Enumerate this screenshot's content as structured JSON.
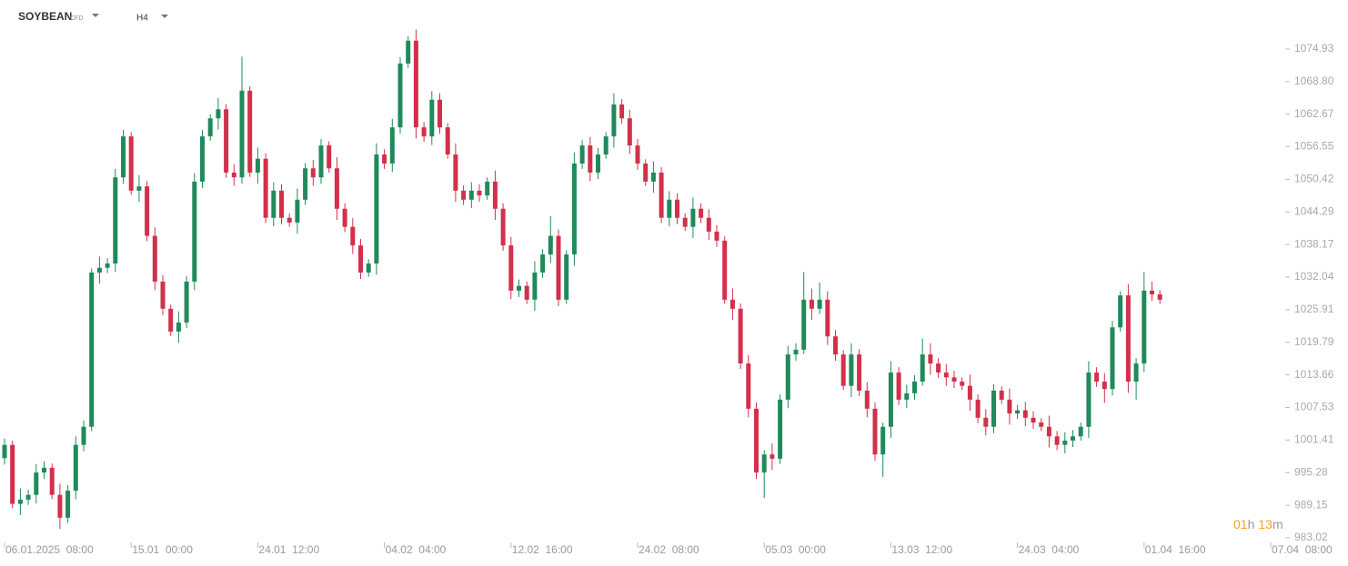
{
  "chart_data": {
    "type": "candlestick",
    "symbol": "SOYBEAN",
    "instrument": "CFD",
    "timeframe": "H4",
    "countdown": [
      "01",
      "h",
      "13",
      "m"
    ],
    "up_color": "#1f8a5b",
    "down_color": "#d2304b",
    "ylim": [
      981.65,
      1084.15
    ],
    "yticks": [
      1074.93,
      {
        "value": 1068.8,
        "label": "1068.80"
      },
      1062.67,
      1056.55,
      1050.42,
      1044.29,
      1038.17,
      1032.04,
      1025.91,
      1019.79,
      1013.66,
      1007.53,
      1001.41,
      995.28,
      989.15,
      983.02
    ],
    "xticks": [
      {
        "value": 0,
        "label": "06.01.2025  08:00"
      },
      {
        "value": 16,
        "label": "15.01  00:00"
      },
      {
        "value": 32,
        "label": "24.01  12:00"
      },
      {
        "value": 48,
        "label": "04.02  04:00"
      },
      {
        "value": 64,
        "label": "12.02  16:00"
      },
      {
        "value": 80,
        "label": "24.02  08:00"
      },
      {
        "value": 96,
        "label": "05.03  00:00"
      },
      {
        "value": 112,
        "label": "13.03  12:00"
      },
      {
        "value": 128,
        "label": "24.03  04:00"
      },
      {
        "value": 144,
        "label": "01.04  16:00"
      },
      {
        "value": 160,
        "label": "07.04  08:00"
      }
    ],
    "series": [
      {
        "name": "SOYBEAN",
        "ohlc": [
          [
            998.0,
            1001.7,
            996.8,
            1000.5
          ],
          [
            1000.5,
            1001.3,
            988.6,
            989.4
          ],
          [
            989.4,
            992.3,
            987.3,
            990.2
          ],
          [
            990.2,
            992.1,
            989.2,
            991.1
          ],
          [
            991.1,
            996.9,
            989.5,
            995.3
          ],
          [
            995.3,
            997.4,
            994.1,
            996.2
          ],
          [
            996.2,
            997.0,
            990.3,
            991.1
          ],
          [
            991.1,
            993.2,
            984.7,
            986.8
          ],
          [
            986.8,
            992.9,
            985.8,
            991.9
          ],
          [
            991.9,
            1002.1,
            990.3,
            1000.5
          ],
          [
            1000.5,
            1005.1,
            999.3,
            1003.9
          ],
          [
            1003.9,
            1033.7,
            1003.1,
            1032.9
          ],
          [
            1032.9,
            1035.9,
            1030.8,
            1033.8
          ],
          [
            1033.8,
            1035.6,
            1032.8,
            1034.6
          ],
          [
            1034.6,
            1052.4,
            1033.0,
            1050.8
          ],
          [
            1050.8,
            1059.7,
            1049.6,
            1058.5
          ],
          [
            1058.5,
            1059.3,
            1047.5,
            1048.3
          ],
          [
            1048.3,
            1051.2,
            1046.2,
            1049.1
          ],
          [
            1049.1,
            1050.1,
            1038.8,
            1039.8
          ],
          [
            1039.8,
            1041.4,
            1029.6,
            1031.2
          ],
          [
            1031.2,
            1032.4,
            1024.9,
            1026.1
          ],
          [
            1026.1,
            1026.9,
            1021.0,
            1021.8
          ],
          [
            1021.8,
            1025.6,
            1019.7,
            1023.5
          ],
          [
            1023.5,
            1032.2,
            1022.5,
            1031.2
          ],
          [
            1031.2,
            1051.6,
            1029.6,
            1050.0
          ],
          [
            1050.0,
            1059.7,
            1048.8,
            1058.5
          ],
          [
            1058.5,
            1062.7,
            1057.7,
            1061.9
          ],
          [
            1061.9,
            1065.7,
            1059.8,
            1063.6
          ],
          [
            1063.6,
            1064.6,
            1050.7,
            1051.7
          ],
          [
            1051.7,
            1053.3,
            1049.2,
            1050.8
          ],
          [
            1050.8,
            1073.5,
            1049.6,
            1067.1
          ],
          [
            1067.1,
            1067.9,
            1050.9,
            1051.7
          ],
          [
            1051.7,
            1056.4,
            1049.6,
            1054.3
          ],
          [
            1054.3,
            1055.3,
            1042.2,
            1043.2
          ],
          [
            1043.2,
            1049.9,
            1041.6,
            1048.3
          ],
          [
            1048.3,
            1049.5,
            1042.0,
            1043.2
          ],
          [
            1043.2,
            1044.0,
            1041.5,
            1042.3
          ],
          [
            1042.3,
            1048.7,
            1040.2,
            1046.6
          ],
          [
            1046.6,
            1053.5,
            1045.6,
            1052.5
          ],
          [
            1052.5,
            1054.1,
            1049.2,
            1050.8
          ],
          [
            1050.8,
            1058.0,
            1049.6,
            1056.8
          ],
          [
            1056.8,
            1057.6,
            1051.7,
            1052.5
          ],
          [
            1052.5,
            1054.6,
            1042.8,
            1044.9
          ],
          [
            1044.9,
            1045.9,
            1040.5,
            1041.5
          ],
          [
            1041.5,
            1043.1,
            1036.4,
            1038.0
          ],
          [
            1038.0,
            1039.2,
            1031.7,
            1032.9
          ],
          [
            1032.9,
            1035.4,
            1032.1,
            1034.6
          ],
          [
            1034.6,
            1057.2,
            1032.5,
            1055.1
          ],
          [
            1055.1,
            1056.1,
            1052.4,
            1053.4
          ],
          [
            1053.4,
            1061.8,
            1051.8,
            1060.2
          ],
          [
            1060.2,
            1073.4,
            1059.0,
            1072.2
          ],
          [
            1072.2,
            1077.3,
            1071.4,
            1076.5
          ],
          [
            1076.5,
            1078.6,
            1058.1,
            1060.2
          ],
          [
            1060.2,
            1061.2,
            1057.5,
            1058.5
          ],
          [
            1058.5,
            1067.0,
            1056.9,
            1065.4
          ],
          [
            1065.4,
            1066.6,
            1059.0,
            1060.2
          ],
          [
            1060.2,
            1061.0,
            1054.3,
            1055.1
          ],
          [
            1055.1,
            1057.2,
            1046.2,
            1048.3
          ],
          [
            1048.3,
            1049.3,
            1045.6,
            1046.6
          ],
          [
            1046.6,
            1049.9,
            1045.0,
            1048.3
          ],
          [
            1048.3,
            1049.5,
            1046.2,
            1047.4
          ],
          [
            1047.4,
            1050.8,
            1046.6,
            1050.0
          ],
          [
            1050.0,
            1052.1,
            1042.8,
            1044.9
          ],
          [
            1044.9,
            1045.9,
            1037.0,
            1038.0
          ],
          [
            1038.0,
            1039.6,
            1027.9,
            1029.5
          ],
          [
            1029.5,
            1031.6,
            1028.3,
            1030.4
          ],
          [
            1030.4,
            1031.2,
            1027.0,
            1027.8
          ],
          [
            1027.8,
            1035.0,
            1025.7,
            1032.9
          ],
          [
            1032.9,
            1037.3,
            1031.9,
            1036.3
          ],
          [
            1036.3,
            1043.5,
            1034.7,
            1039.8
          ],
          [
            1039.8,
            1041.0,
            1026.6,
            1027.8
          ],
          [
            1027.8,
            1037.1,
            1027.0,
            1036.3
          ],
          [
            1036.3,
            1055.5,
            1034.2,
            1053.4
          ],
          [
            1053.4,
            1057.8,
            1052.4,
            1056.8
          ],
          [
            1056.8,
            1058.4,
            1050.1,
            1051.7
          ],
          [
            1051.7,
            1056.3,
            1050.5,
            1055.1
          ],
          [
            1055.1,
            1059.3,
            1054.3,
            1058.5
          ],
          [
            1058.5,
            1066.6,
            1056.4,
            1064.5
          ],
          [
            1064.5,
            1065.5,
            1060.9,
            1061.9
          ],
          [
            1061.9,
            1063.5,
            1055.2,
            1056.8
          ],
          [
            1056.8,
            1058.0,
            1052.2,
            1053.4
          ],
          [
            1053.4,
            1054.2,
            1049.2,
            1050.0
          ],
          [
            1050.0,
            1053.8,
            1047.9,
            1051.7
          ],
          [
            1051.7,
            1052.7,
            1042.2,
            1043.2
          ],
          [
            1043.2,
            1048.2,
            1041.6,
            1046.6
          ],
          [
            1046.6,
            1047.8,
            1042.0,
            1043.2
          ],
          [
            1043.2,
            1044.0,
            1040.7,
            1041.5
          ],
          [
            1041.5,
            1047.0,
            1039.4,
            1044.9
          ],
          [
            1044.9,
            1045.9,
            1042.2,
            1043.2
          ],
          [
            1043.2,
            1044.8,
            1039.0,
            1040.6
          ],
          [
            1040.6,
            1041.8,
            1037.7,
            1038.9
          ],
          [
            1038.9,
            1039.7,
            1027.0,
            1027.8
          ],
          [
            1027.8,
            1029.9,
            1024.0,
            1026.1
          ],
          [
            1026.1,
            1027.1,
            1014.8,
            1015.8
          ],
          [
            1015.8,
            1017.4,
            1005.7,
            1007.3
          ],
          [
            1007.3,
            1008.5,
            994.1,
            995.3
          ],
          [
            995.3,
            999.5,
            990.5,
            998.7
          ],
          [
            998.7,
            1000.8,
            995.8,
            997.9
          ],
          [
            997.9,
            1010.0,
            996.9,
            1009.0
          ],
          [
            1009.0,
            1019.1,
            1007.4,
            1017.5
          ],
          [
            1017.5,
            1019.6,
            1016.3,
            1018.4
          ],
          [
            1018.4,
            1033.0,
            1017.6,
            1027.8
          ],
          [
            1027.8,
            1029.9,
            1024.0,
            1026.1
          ],
          [
            1026.1,
            1031.0,
            1025.1,
            1027.8
          ],
          [
            1027.8,
            1029.4,
            1019.3,
            1020.9
          ],
          [
            1020.9,
            1022.1,
            1016.3,
            1017.5
          ],
          [
            1017.5,
            1018.3,
            1010.8,
            1011.6
          ],
          [
            1011.6,
            1019.6,
            1009.5,
            1017.5
          ],
          [
            1017.5,
            1018.5,
            1009.7,
            1010.7
          ],
          [
            1010.7,
            1012.3,
            1005.7,
            1007.3
          ],
          [
            1007.3,
            1008.5,
            997.5,
            998.7
          ],
          [
            998.7,
            1004.7,
            994.5,
            1003.9
          ],
          [
            1003.9,
            1016.2,
            1001.8,
            1014.1
          ],
          [
            1014.1,
            1015.1,
            1008.0,
            1009.0
          ],
          [
            1009.0,
            1011.8,
            1007.4,
            1010.2
          ],
          [
            1010.2,
            1013.6,
            1009.0,
            1012.4
          ],
          [
            1012.4,
            1020.5,
            1011.6,
            1017.5
          ],
          [
            1017.5,
            1019.6,
            1013.7,
            1015.8
          ],
          [
            1015.8,
            1016.8,
            1013.1,
            1014.1
          ],
          [
            1014.1,
            1015.7,
            1011.6,
            1013.2
          ],
          [
            1013.2,
            1014.4,
            1011.2,
            1012.4
          ],
          [
            1012.4,
            1013.2,
            1010.8,
            1011.6
          ],
          [
            1011.6,
            1013.7,
            1006.9,
            1009.0
          ],
          [
            1009.0,
            1010.0,
            1004.6,
            1005.6
          ],
          [
            1005.6,
            1007.2,
            1002.3,
            1003.9
          ],
          [
            1003.9,
            1011.9,
            1002.7,
            1010.7
          ],
          [
            1010.7,
            1011.5,
            1008.2,
            1009.0
          ],
          [
            1009.0,
            1011.1,
            1004.3,
            1006.4
          ],
          [
            1006.4,
            1008.0,
            1005.4,
            1007.0
          ],
          [
            1007.0,
            1008.6,
            1004.0,
            1005.6
          ],
          [
            1005.6,
            1006.8,
            1003.5,
            1004.7
          ],
          [
            1004.7,
            1005.5,
            1003.1,
            1003.9
          ],
          [
            1003.9,
            1006.0,
            1000.0,
            1002.1
          ],
          [
            1002.1,
            1003.1,
            999.5,
            1000.5
          ],
          [
            1000.5,
            1002.9,
            998.9,
            1001.3
          ],
          [
            1001.3,
            1003.3,
            1000.1,
            1002.1
          ],
          [
            1002.1,
            1004.7,
            1001.3,
            1003.9
          ],
          [
            1003.9,
            1016.2,
            1001.8,
            1014.1
          ],
          [
            1014.1,
            1015.1,
            1011.4,
            1012.4
          ],
          [
            1012.4,
            1014.0,
            1008.4,
            1011.0
          ],
          [
            1011.0,
            1023.8,
            1009.8,
            1022.6
          ],
          [
            1022.6,
            1029.4,
            1021.8,
            1028.6
          ],
          [
            1028.6,
            1030.7,
            1010.3,
            1012.4
          ],
          [
            1012.4,
            1016.8,
            1009.0,
            1015.8
          ],
          [
            1015.8,
            1033.0,
            1014.2,
            1029.5
          ],
          [
            1029.5,
            1031.2,
            1027.6,
            1028.8
          ],
          [
            1028.8,
            1029.6,
            1027.0,
            1027.8
          ]
        ]
      }
    ]
  }
}
